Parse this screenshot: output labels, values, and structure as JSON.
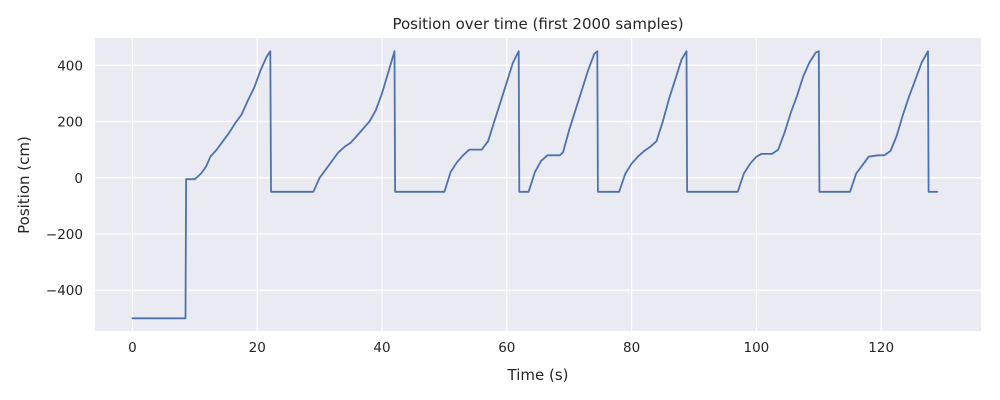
{
  "chart_data": {
    "type": "line",
    "title": "Position over time (first 2000 samples)",
    "xlabel": "Time (s)",
    "ylabel": "Position (cm)",
    "xlim": [
      -6,
      136
    ],
    "ylim": [
      -545,
      497
    ],
    "xticks": [
      0,
      20,
      40,
      60,
      80,
      100,
      120
    ],
    "yticks": [
      -400,
      -200,
      0,
      200,
      400
    ],
    "grid": true,
    "legend": "none",
    "colors": {
      "background": "#eaeaf2",
      "grid": "#ffffff",
      "line": "#4c72b0"
    },
    "series": [
      {
        "x": [
          0,
          8.5,
          8.6,
          10,
          11,
          11.8,
          12.5,
          13.5,
          14.5,
          15.5,
          16.5,
          17.5,
          18.5,
          19.5,
          20.5,
          21.5,
          22.1,
          22.2,
          29,
          30,
          31,
          32,
          33,
          34,
          35,
          36,
          37,
          38,
          39,
          40,
          41,
          42,
          42.1,
          50,
          51,
          52,
          53,
          54,
          55,
          56,
          57,
          58,
          59,
          60,
          61,
          61.9,
          62,
          63.5,
          64.5,
          65.5,
          66.5,
          67.5,
          68.5,
          69,
          70,
          71,
          72,
          73,
          74,
          74.5,
          74.6,
          78,
          79,
          80,
          81,
          82,
          83,
          84,
          85,
          86,
          87,
          88,
          88.8,
          88.9,
          97,
          98,
          99,
          100,
          100.8,
          102.5,
          103.5,
          104.5,
          105.5,
          106.5,
          107.5,
          108.5,
          109.5,
          110,
          110.1,
          115,
          116,
          117,
          118,
          119.5,
          120.5,
          121.5,
          122.5,
          123.5,
          124.5,
          125.5,
          126.5,
          127.5,
          127.6,
          129
        ],
        "y": [
          -500,
          -500,
          -5,
          -5,
          15,
          40,
          75,
          100,
          130,
          160,
          195,
          225,
          275,
          320,
          380,
          430,
          450,
          -50,
          -50,
          0,
          30,
          60,
          90,
          110,
          125,
          150,
          175,
          200,
          240,
          300,
          375,
          450,
          -50,
          -50,
          20,
          55,
          80,
          100,
          100,
          100,
          130,
          200,
          270,
          340,
          410,
          450,
          -50,
          -50,
          20,
          60,
          80,
          80,
          80,
          90,
          170,
          240,
          310,
          380,
          440,
          450,
          -50,
          -50,
          15,
          50,
          75,
          95,
          110,
          130,
          200,
          280,
          350,
          420,
          450,
          -50,
          -50,
          15,
          50,
          75,
          85,
          85,
          100,
          160,
          230,
          290,
          360,
          410,
          445,
          450,
          -50,
          -50,
          15,
          45,
          75,
          80,
          80,
          95,
          150,
          225,
          290,
          350,
          410,
          450,
          -50,
          -50
        ]
      }
    ]
  }
}
